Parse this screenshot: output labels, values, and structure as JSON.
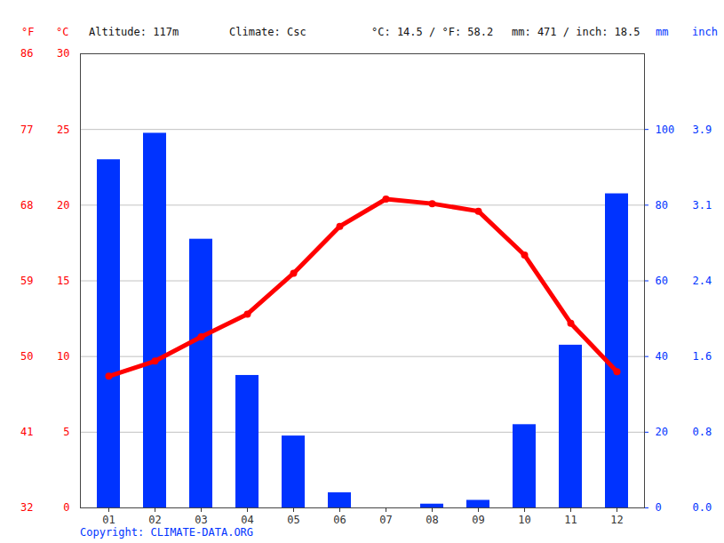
{
  "chart_data": {
    "type": "bar",
    "categories": [
      "01",
      "02",
      "03",
      "04",
      "05",
      "06",
      "07",
      "08",
      "09",
      "10",
      "11",
      "12"
    ],
    "series": [
      {
        "type": "bar",
        "axis": "y2",
        "color": "#0033ff",
        "values": [
          92,
          99,
          71,
          35,
          19,
          4,
          0,
          1,
          2,
          22,
          43,
          83
        ]
      },
      {
        "type": "line",
        "color": "#ff0000",
        "marker": "circle",
        "values": [
          8.7,
          9.7,
          11.3,
          12.8,
          15.5,
          18.6,
          20.4,
          20.1,
          19.6,
          16.7,
          12.2,
          9.0
        ]
      }
    ],
    "ylim": [
      0,
      30
    ],
    "yticks": [
      0,
      5,
      10,
      15,
      20,
      25,
      30
    ],
    "yticks_fahrenheit": [
      {
        "value": 0,
        "label": "32"
      },
      {
        "value": 5,
        "label": "41"
      },
      {
        "value": 10,
        "label": "50"
      },
      {
        "value": 15,
        "label": "59"
      },
      {
        "value": 20,
        "label": "68"
      },
      {
        "value": 25,
        "label": "77"
      },
      {
        "value": 30,
        "label": "86"
      }
    ],
    "ylabel": "°C",
    "ylabel_fahrenheit": "°F",
    "y2lim": [
      0,
      120
    ],
    "y2ticks": [
      0,
      20,
      40,
      60,
      80,
      100
    ],
    "y2ticks_inch": [
      {
        "value": 0,
        "label": "0.0"
      },
      {
        "value": 20,
        "label": "0.8"
      },
      {
        "value": 40,
        "label": "1.6"
      },
      {
        "value": 60,
        "label": "2.4"
      },
      {
        "value": 80,
        "label": "3.1"
      },
      {
        "value": 100,
        "label": "3.9"
      }
    ],
    "y2label": "mm",
    "y2label_inch": "inch",
    "annotations": [
      "Altitude: 117m",
      "Climate: Csc",
      "°C: 14.5 / °F: 58.2",
      "mm: 471 / inch: 18.5"
    ],
    "caption": "Copyright: CLIMATE-DATA.ORG",
    "grid": true
  }
}
